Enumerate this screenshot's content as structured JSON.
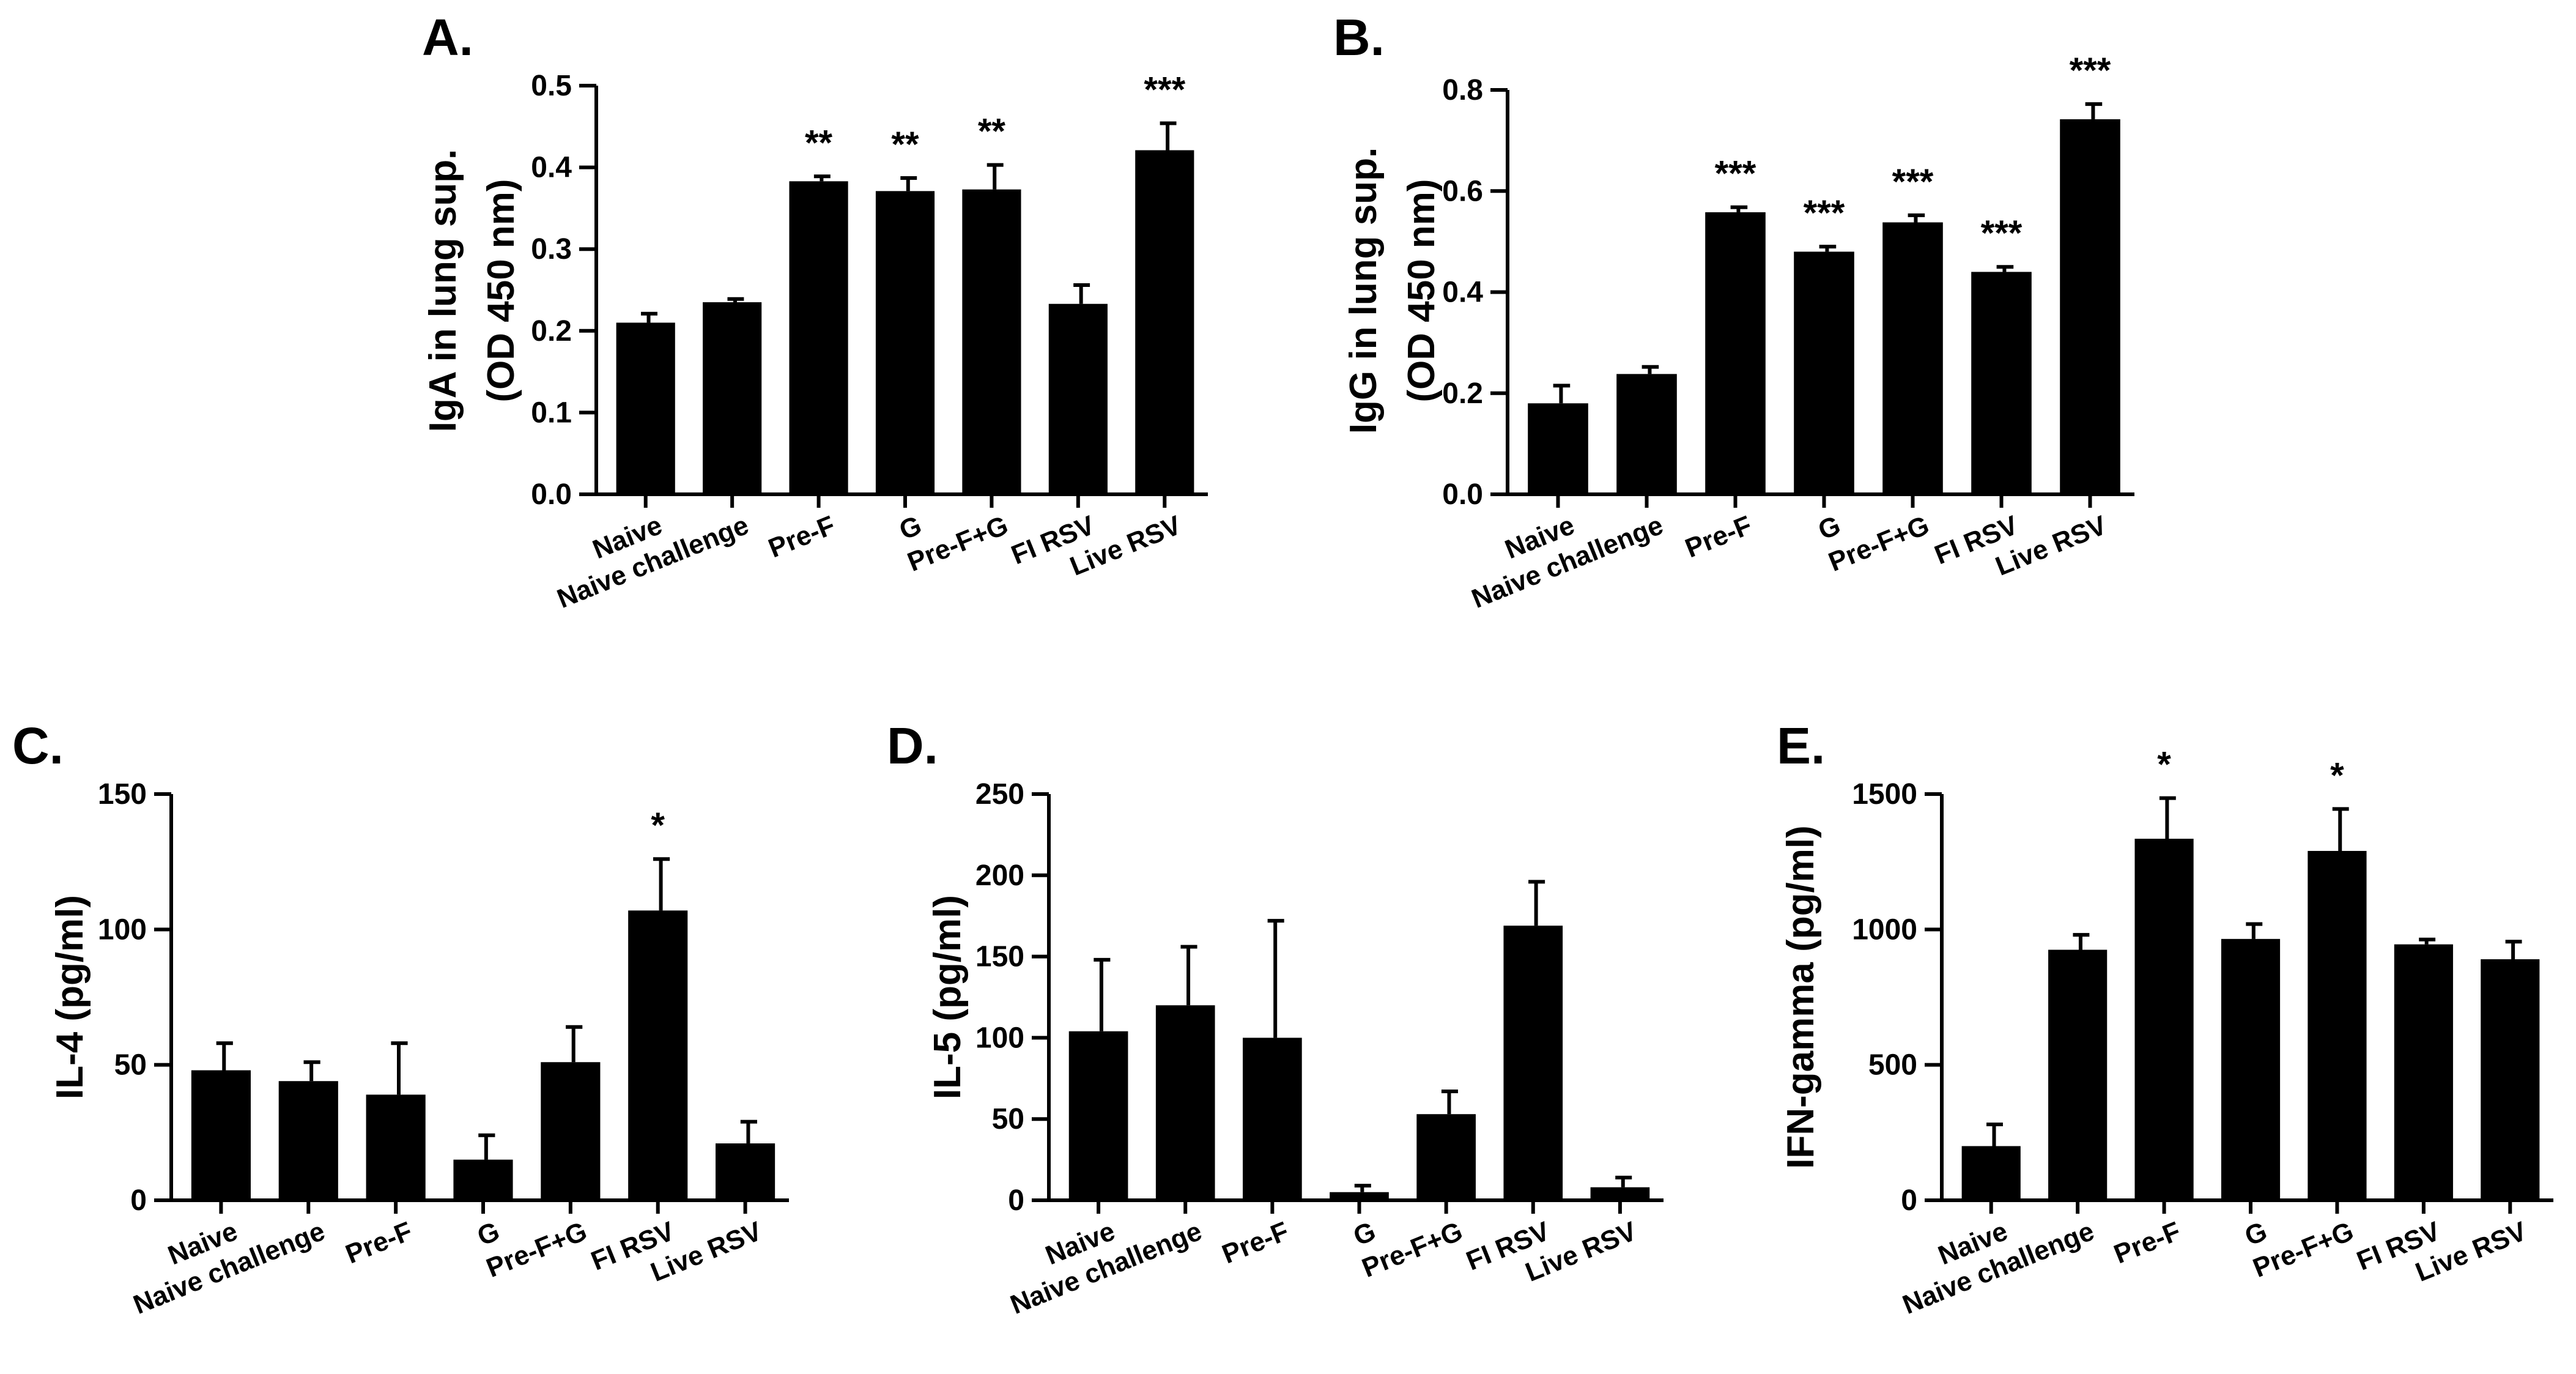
{
  "chart_data": [
    {
      "panel": "A.",
      "type": "bar",
      "categories": [
        "Naive",
        "Naive challenge",
        "Pre-F",
        "G",
        "Pre-F+G",
        "FI RSV",
        "Live RSV"
      ],
      "values": [
        0.21,
        0.235,
        0.383,
        0.371,
        0.373,
        0.233,
        0.421
      ],
      "errors": [
        0.011,
        0.004,
        0.006,
        0.016,
        0.03,
        0.023,
        0.033
      ],
      "significance": [
        "",
        "",
        "**",
        "**",
        "**",
        "",
        "***"
      ],
      "ylabel": [
        "IgA in lung sup.",
        "(OD 450 nm)"
      ],
      "ylim": [
        0,
        0.5
      ],
      "yticks": [
        "0.0",
        "0.1",
        "0.2",
        "0.3",
        "0.4",
        "0.5"
      ]
    },
    {
      "panel": "B.",
      "type": "bar",
      "categories": [
        "Naive",
        "Naive challenge",
        "Pre-F",
        "G",
        "Pre-F+G",
        "FI RSV",
        "Live RSV"
      ],
      "values": [
        0.18,
        0.238,
        0.558,
        0.48,
        0.538,
        0.44,
        0.742
      ],
      "errors": [
        0.035,
        0.014,
        0.01,
        0.01,
        0.014,
        0.01,
        0.03
      ],
      "significance": [
        "",
        "",
        "***",
        "***",
        "***",
        "***",
        "***"
      ],
      "ylabel": [
        "IgG in lung sup.",
        "(OD 450 nm)"
      ],
      "ylim": [
        0,
        0.8
      ],
      "yticks": [
        "0.0",
        "0.2",
        "0.4",
        "0.6",
        "0.8"
      ]
    },
    {
      "panel": "C.",
      "type": "bar",
      "categories": [
        "Naive",
        "Naive challenge",
        "Pre-F",
        "G",
        "Pre-F+G",
        "FI RSV",
        "Live RSV"
      ],
      "values": [
        48,
        44,
        39,
        15,
        51,
        107,
        21
      ],
      "errors": [
        10,
        7,
        19,
        9,
        13,
        19,
        8
      ],
      "significance": [
        "",
        "",
        "",
        "",
        "",
        "*",
        ""
      ],
      "ylabel": [
        "IL-4 (pg/ml)"
      ],
      "ylim": [
        0,
        150
      ],
      "yticks": [
        "0",
        "50",
        "100",
        "150"
      ]
    },
    {
      "panel": "D.",
      "type": "bar",
      "categories": [
        "Naive",
        "Naive challenge",
        "Pre-F",
        "G",
        "Pre-F+G",
        "FI RSV",
        "Live RSV"
      ],
      "values": [
        104,
        120,
        100,
        5,
        53,
        169,
        8
      ],
      "errors": [
        44,
        36,
        72,
        4,
        14,
        27,
        6
      ],
      "significance": [
        "",
        "",
        "",
        "",
        "",
        "",
        ""
      ],
      "ylabel": [
        "IL-5 (pg/ml)"
      ],
      "ylim": [
        0,
        250
      ],
      "yticks": [
        "0",
        "50",
        "100",
        "150",
        "200",
        "250"
      ]
    },
    {
      "panel": "E.",
      "type": "bar",
      "categories": [
        "Naive",
        "Naive challenge",
        "Pre-F",
        "G",
        "Pre-F+G",
        "FI RSV",
        "Live RSV"
      ],
      "values": [
        200,
        925,
        1335,
        965,
        1290,
        945,
        890
      ],
      "errors": [
        80,
        55,
        150,
        55,
        155,
        18,
        65
      ],
      "significance": [
        "",
        "",
        "*",
        "",
        "*",
        "",
        ""
      ],
      "ylabel": [
        "IFN-gamma (pg/ml)"
      ],
      "ylim": [
        0,
        1500
      ],
      "yticks": [
        "0",
        "500",
        "1000",
        "1500"
      ]
    }
  ]
}
